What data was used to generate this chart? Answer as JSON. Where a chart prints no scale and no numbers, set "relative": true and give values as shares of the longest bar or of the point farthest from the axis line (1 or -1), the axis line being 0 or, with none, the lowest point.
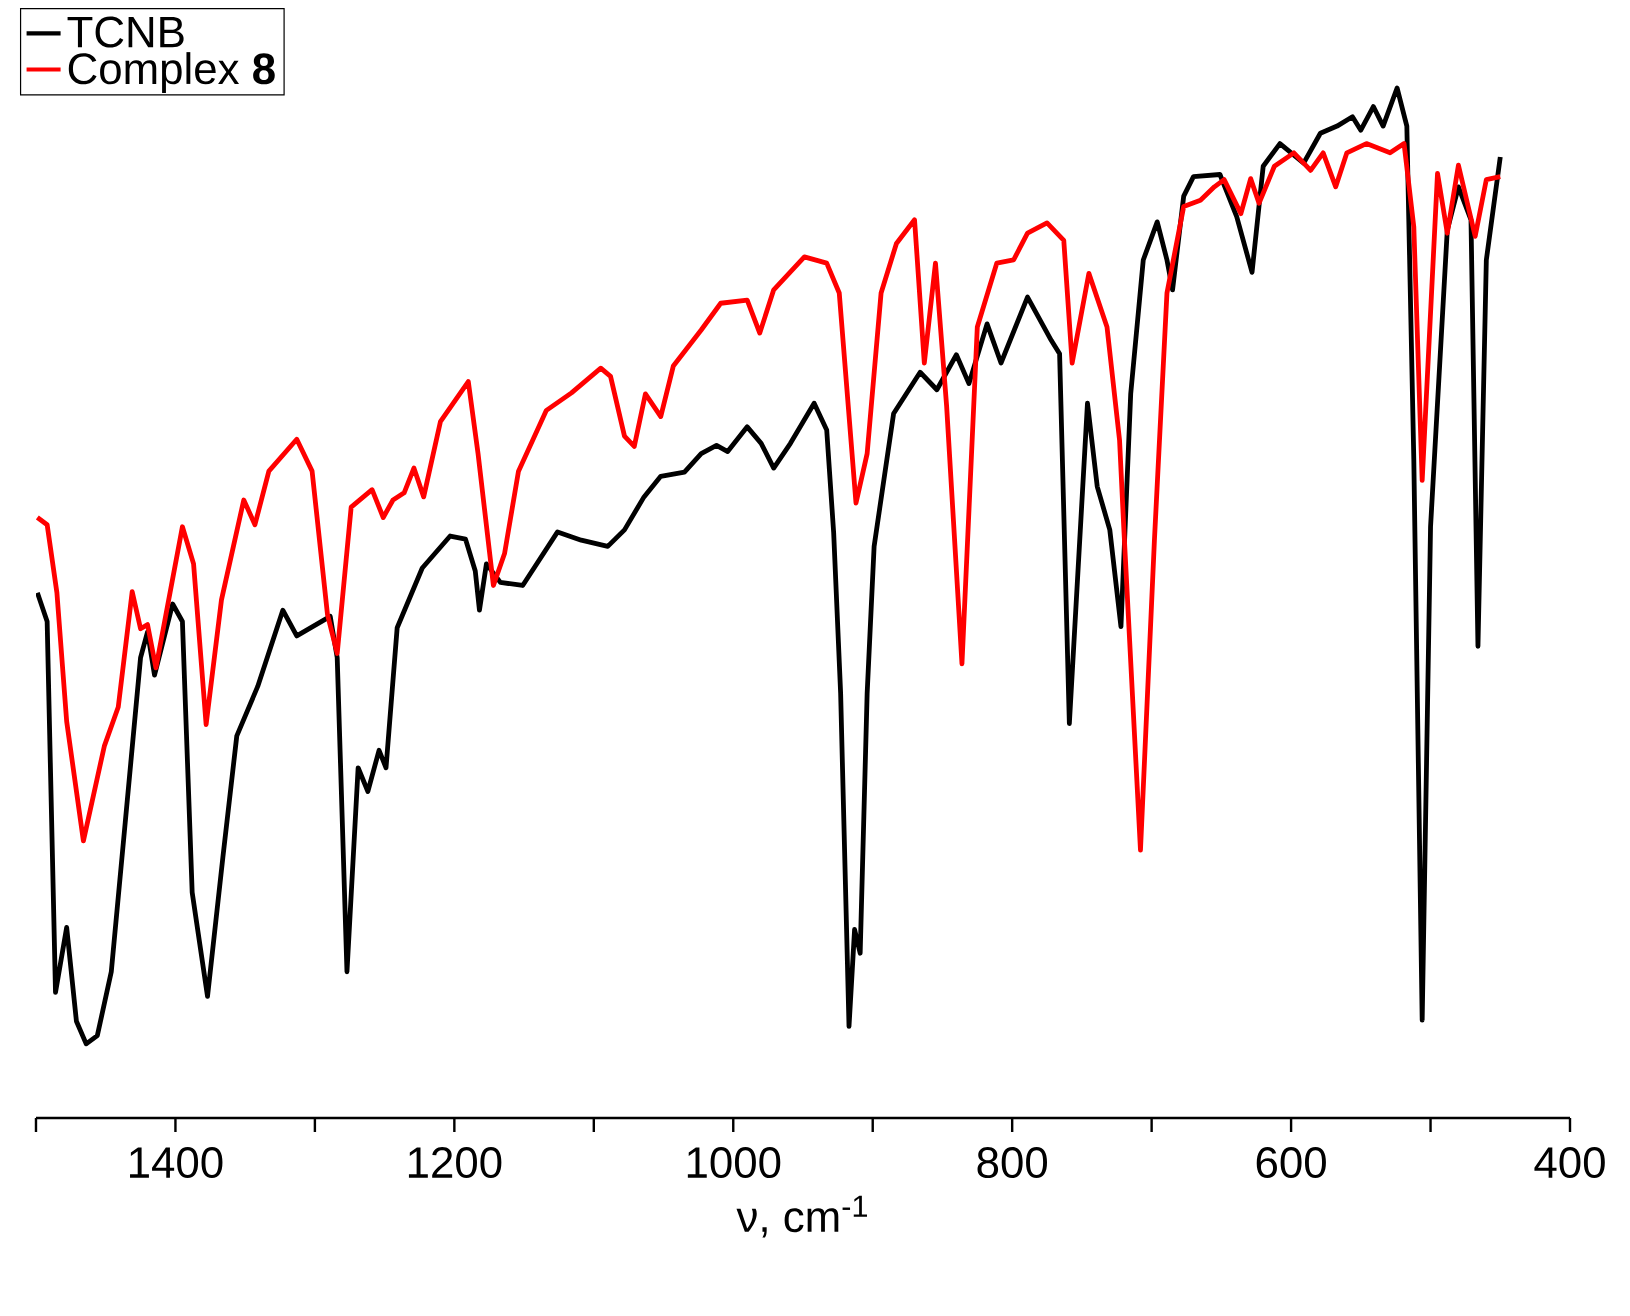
{
  "chart_data": {
    "type": "line",
    "relative": true,
    "xlabel": "ν, cm$^{-1}$",
    "legend": "top left",
    "xlim": [
      1500,
      400
    ],
    "xticks": [
      {
        "value": 1500,
        "label": null
      },
      1400,
      {
        "value": 1300,
        "label": null
      },
      1200,
      {
        "value": 1100,
        "label": null
      },
      1000,
      {
        "value": 900,
        "label": null
      },
      800,
      {
        "value": 700,
        "label": null
      },
      600,
      {
        "value": 500,
        "label": null
      },
      400
    ],
    "series": [
      {
        "name": "TCNB",
        "color": "#000000",
        "x": [
          1499,
          1492,
          1486,
          1478,
          1471,
          1464,
          1456,
          1446,
          1436,
          1425,
          1420,
          1415,
          1402,
          1395,
          1388,
          1377,
          1366,
          1356,
          1341,
          1323,
          1313,
          1289,
          1284,
          1277,
          1269,
          1262,
          1254,
          1249,
          1241,
          1223,
          1203,
          1192,
          1185,
          1182,
          1177,
          1167,
          1151,
          1126,
          1109,
          1090,
          1078,
          1064,
          1052,
          1035,
          1023,
          1012,
          1004,
          990,
          980,
          971,
          959,
          942,
          933,
          928,
          923,
          917,
          913,
          909,
          904,
          899,
          885,
          866,
          854,
          840,
          831,
          818,
          808,
          789,
          772,
          766,
          759,
          746,
          739,
          730,
          722,
          715,
          706,
          696,
          689,
          685,
          677,
          670,
          651,
          639,
          628,
          620,
          608,
          591,
          579,
          567,
          556,
          550,
          541,
          534,
          524,
          517,
          512,
          506,
          500,
          488,
          480,
          471,
          466,
          460,
          450
        ],
        "values": [
          0.51,
          0.482,
          0.122,
          0.185,
          0.094,
          0.072,
          0.08,
          0.142,
          0.287,
          0.447,
          0.472,
          0.43,
          0.499,
          0.482,
          0.219,
          0.118,
          0.253,
          0.371,
          0.419,
          0.493,
          0.468,
          0.487,
          0.447,
          0.142,
          0.34,
          0.317,
          0.357,
          0.34,
          0.476,
          0.534,
          0.565,
          0.562,
          0.531,
          0.493,
          0.538,
          0.52,
          0.517,
          0.569,
          0.561,
          0.555,
          0.571,
          0.603,
          0.623,
          0.627,
          0.645,
          0.653,
          0.647,
          0.671,
          0.655,
          0.631,
          0.655,
          0.694,
          0.668,
          0.568,
          0.412,
          0.089,
          0.183,
          0.16,
          0.412,
          0.555,
          0.684,
          0.724,
          0.707,
          0.741,
          0.713,
          0.771,
          0.733,
          0.797,
          0.755,
          0.742,
          0.383,
          0.694,
          0.613,
          0.571,
          0.477,
          0.703,
          0.833,
          0.87,
          0.833,
          0.804,
          0.895,
          0.914,
          0.916,
          0.875,
          0.821,
          0.924,
          0.946,
          0.927,
          0.956,
          0.963,
          0.972,
          0.959,
          0.982,
          0.963,
          1.0,
          0.963,
          0.639,
          0.095,
          0.574,
          0.862,
          0.904,
          0.872,
          0.458,
          0.833,
          0.933
        ]
      },
      {
        "name": "Complex **8**",
        "color": "#ff0000",
        "x": [
          1499,
          1492,
          1485,
          1478,
          1466,
          1451,
          1441,
          1431,
          1425,
          1420,
          1414,
          1395,
          1387,
          1378,
          1367,
          1351,
          1343,
          1333,
          1313,
          1302,
          1291,
          1284,
          1274,
          1259,
          1251,
          1244,
          1236,
          1229,
          1222,
          1210,
          1190,
          1183,
          1172,
          1164,
          1154,
          1134,
          1116,
          1095,
          1088,
          1078,
          1071,
          1063,
          1052,
          1043,
          1023,
          1009,
          990,
          981,
          971,
          949,
          933,
          924,
          912,
          904,
          894,
          883,
          870,
          863,
          855,
          847,
          836,
          825,
          811,
          799,
          789,
          775,
          763,
          757,
          745,
          732,
          723,
          720,
          708,
          698,
          689,
          677,
          665,
          655,
          648,
          636,
          629,
          623,
          612,
          598,
          586,
          577,
          568,
          560,
          546,
          529,
          519,
          512,
          506,
          495,
          488,
          480,
          468,
          460,
          450
        ],
        "values": [
          0.583,
          0.576,
          0.51,
          0.385,
          0.269,
          0.361,
          0.399,
          0.511,
          0.475,
          0.479,
          0.437,
          0.574,
          0.538,
          0.382,
          0.503,
          0.6,
          0.576,
          0.628,
          0.659,
          0.628,
          0.489,
          0.451,
          0.593,
          0.61,
          0.583,
          0.6,
          0.607,
          0.631,
          0.603,
          0.676,
          0.715,
          0.645,
          0.517,
          0.548,
          0.628,
          0.687,
          0.704,
          0.728,
          0.72,
          0.662,
          0.652,
          0.703,
          0.681,
          0.73,
          0.765,
          0.791,
          0.794,
          0.762,
          0.804,
          0.836,
          0.83,
          0.801,
          0.597,
          0.645,
          0.801,
          0.849,
          0.872,
          0.733,
          0.83,
          0.691,
          0.441,
          0.768,
          0.83,
          0.833,
          0.859,
          0.869,
          0.852,
          0.733,
          0.82,
          0.768,
          0.658,
          0.574,
          0.26,
          0.561,
          0.801,
          0.885,
          0.891,
          0.904,
          0.911,
          0.878,
          0.912,
          0.888,
          0.924,
          0.937,
          0.92,
          0.937,
          0.904,
          0.937,
          0.946,
          0.937,
          0.946,
          0.865,
          0.619,
          0.917,
          0.859,
          0.925,
          0.856,
          0.911,
          0.914
        ]
      }
    ]
  }
}
